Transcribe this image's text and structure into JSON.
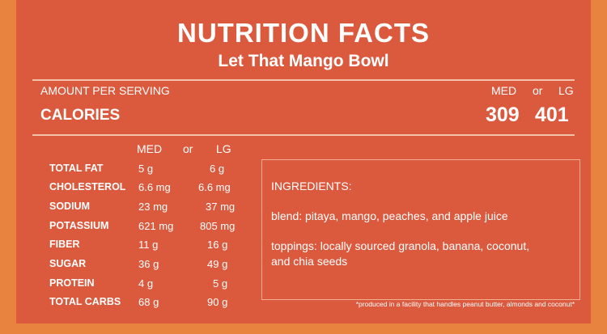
{
  "header": {
    "title": "NUTRITION FACTS",
    "subtitle": "Let That Mango Bowl"
  },
  "serving": {
    "amount_label": "AMOUNT PER SERVING",
    "med_label": "MED",
    "or_label": "or",
    "lg_label": "LG",
    "calories_label": "CALORIES",
    "calories_med": "309",
    "calories_lg": "401"
  },
  "nutrients": {
    "med_header": "MED",
    "or_header": "or",
    "lg_header": "LG",
    "rows": [
      {
        "label": "TOTAL FAT",
        "med": "5 g",
        "lg": "6 g"
      },
      {
        "label": "CHOLESTEROL",
        "med": "6.6 mg",
        "lg": "6.6 mg"
      },
      {
        "label": "SODIUM",
        "med": "23 mg",
        "lg": "37 mg"
      },
      {
        "label": "POTASSIUM",
        "med": "621 mg",
        "lg": "805 mg"
      },
      {
        "label": "FIBER",
        "med": "11 g",
        "lg": "16 g"
      },
      {
        "label": "SUGAR",
        "med": "36 g",
        "lg": "49 g"
      },
      {
        "label": "PROTEIN",
        "med": "4 g",
        "lg": "5 g"
      },
      {
        "label": "TOTAL CARBS",
        "med": "68 g",
        "lg": "90 g"
      }
    ]
  },
  "ingredients": {
    "heading": "INGREDIENTS:",
    "blend": "blend: pitaya, mango, peaches, and apple juice",
    "toppings_line1": "toppings: locally sourced granola, banana, coconut,",
    "toppings_line2": "and chia seeds"
  },
  "footnote": "*produced in a facility that handles peanut butter, almonds and coconut*",
  "colors": {
    "background": "#E8833F",
    "panel": "#DB5A3E",
    "text": "#FFFFFF"
  }
}
